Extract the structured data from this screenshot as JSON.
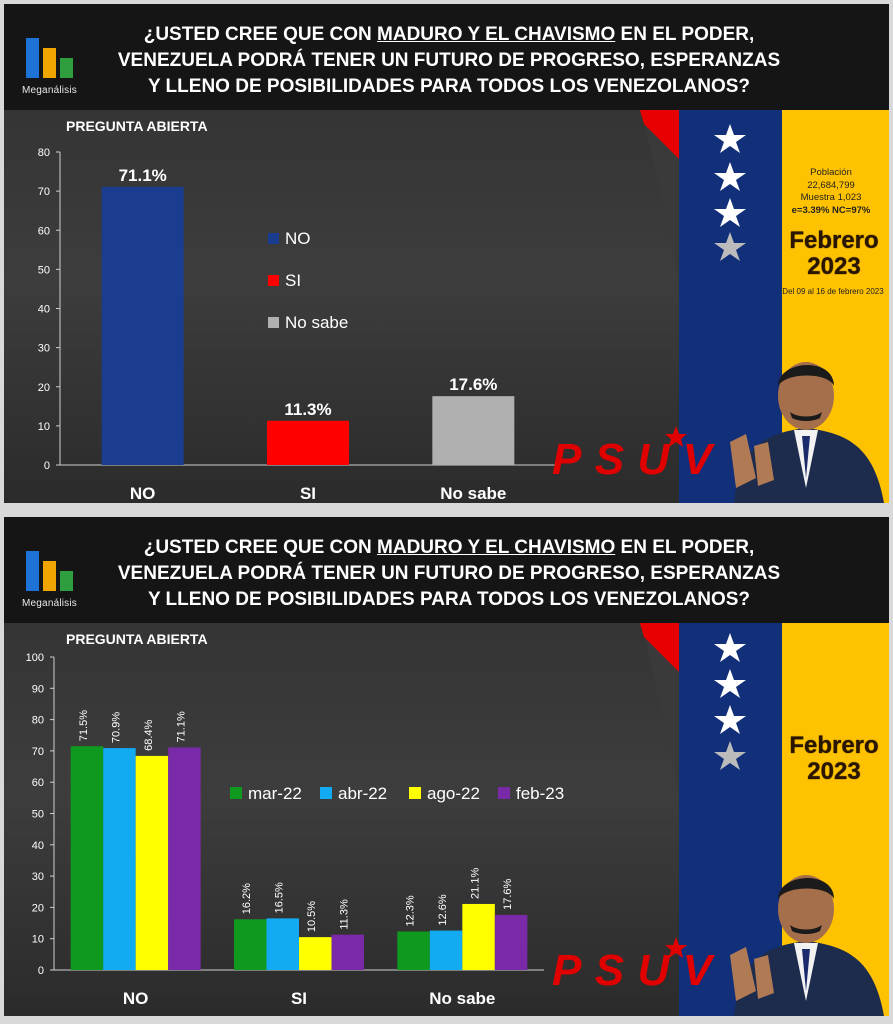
{
  "title": {
    "prefix": "¿USTED CREE QUE CON ",
    "underlined": "MADURO Y EL CHAVISMO",
    "suffix": " EN EL PODER,",
    "line2": "VENEZUELA PODRÁ TENER UN FUTURO DE PROGRESO, ESPERANZAS",
    "line3": "Y LLENO DE POSIBILIDADES PARA TODOS LOS VENEZOLANOS?"
  },
  "brand": "Meganálisis",
  "subtitle": "PREGUNTA ABIERTA",
  "info": {
    "poblacion_label": "Población",
    "poblacion_value": "22,684,799",
    "muestra": "Muestra 1,023",
    "error": "e=3.39%  NC=97%"
  },
  "month": "Febrero",
  "year": "2023",
  "dates": "Del 09 al 16 de febrero 2023",
  "party_logo_text": "PSUV",
  "colors": {
    "no": "#1a3d8f",
    "si": "#ff0000",
    "nosabe": "#b0b0b0",
    "mar22": "#0f9a1f",
    "abr22": "#12aaf0",
    "ago22": "#ffff00",
    "feb23": "#7a2aa8",
    "flag_yellow": "#ffc200",
    "flag_blue": "#12307a",
    "flag_red": "#e60000"
  },
  "chart_data": [
    {
      "type": "bar",
      "categories": [
        "NO",
        "SI",
        "No sabe"
      ],
      "values": [
        71.1,
        11.3,
        17.6
      ],
      "labels": [
        "71.1%",
        "11.3%",
        "17.6%"
      ],
      "legend": [
        "NO",
        "SI",
        "No sabe"
      ],
      "ylim": [
        0,
        80
      ],
      "yticks": [
        0,
        10,
        20,
        30,
        40,
        50,
        60,
        70,
        80
      ],
      "legend_position": "center"
    },
    {
      "type": "bar",
      "categories": [
        "NO",
        "SI",
        "No sabe"
      ],
      "series": [
        {
          "name": "mar-22",
          "values": [
            71.5,
            16.2,
            12.3
          ],
          "labels": [
            "71.5%",
            "16.2%",
            "12.3%"
          ]
        },
        {
          "name": "abr-22",
          "values": [
            70.9,
            16.5,
            12.6
          ],
          "labels": [
            "70.9%",
            "16.5%",
            "12.6%"
          ]
        },
        {
          "name": "ago-22",
          "values": [
            68.4,
            10.5,
            21.1
          ],
          "labels": [
            "68.4%",
            "10.5%",
            "21.1%"
          ]
        },
        {
          "name": "feb-23",
          "values": [
            71.1,
            11.3,
            17.6
          ],
          "labels": [
            "71.1%",
            "11.3%",
            "17.6%"
          ]
        }
      ],
      "ylim": [
        0,
        100
      ],
      "yticks": [
        0,
        10,
        20,
        30,
        40,
        50,
        60,
        70,
        80,
        90,
        100
      ],
      "legend_position": "center"
    }
  ]
}
